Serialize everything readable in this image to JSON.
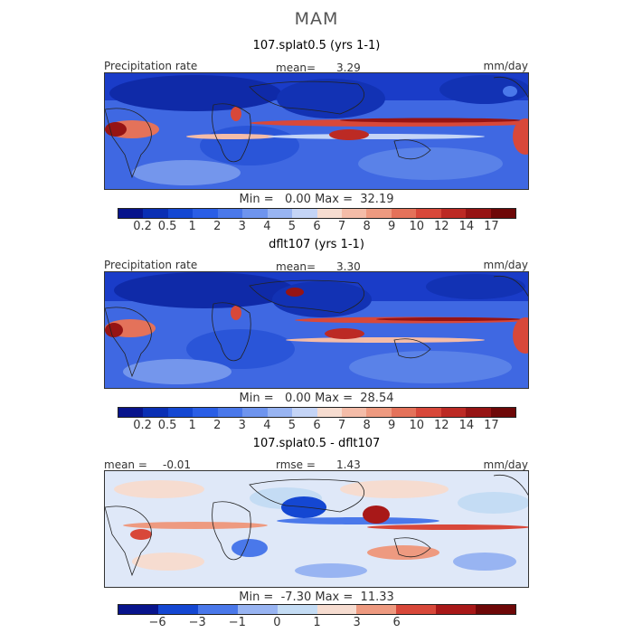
{
  "title": "MAM",
  "panels": [
    {
      "title": "107.splat0.5 (yrs 1-1)",
      "left_label": "Precipitation rate",
      "center_label": "mean=",
      "center_value": "3.29",
      "units": "mm/day",
      "min_label": "Min =",
      "min_value": "0.00",
      "max_label": "Max =",
      "max_value": "32.19"
    },
    {
      "title": "dflt107 (yrs 1-1)",
      "left_label": "Precipitation rate",
      "center_label": "mean=",
      "center_value": "3.30",
      "units": "mm/day",
      "min_label": "Min =",
      "min_value": "0.00",
      "max_label": "Max =",
      "max_value": "28.54"
    },
    {
      "title": "107.splat0.5 - dflt107",
      "left_label": "mean =",
      "left_value": "-0.01",
      "center_label": "rmse =",
      "center_value": "1.43",
      "units": "mm/day",
      "min_label": "Min =",
      "min_value": "-7.30",
      "max_label": "Max =",
      "max_value": "11.33"
    }
  ],
  "colorbar_precip": {
    "ticks": [
      "0.2",
      "0.5",
      "1",
      "2",
      "3",
      "4",
      "5",
      "6",
      "7",
      "8",
      "9",
      "10",
      "12",
      "14",
      "17"
    ],
    "colors": [
      "#08148c",
      "#0a2fb4",
      "#1447d2",
      "#2a5ee6",
      "#4a78ea",
      "#6e94ee",
      "#98b4f2",
      "#c4d4f6",
      "#f6dcd0",
      "#f4bca8",
      "#ee9a80",
      "#e4725a",
      "#d8483a",
      "#bc2a24",
      "#961414",
      "#6e0808"
    ]
  },
  "colorbar_diff": {
    "ticks": [
      "-6",
      "-3",
      "-1",
      "0",
      "1",
      "3",
      "6"
    ],
    "colors": [
      "#08148c",
      "#1447d2",
      "#4a78ea",
      "#98b4f2",
      "#c4dcf4",
      "#f6dcd0",
      "#ee9a80",
      "#d8483a",
      "#a81818",
      "#6e0808"
    ]
  }
}
